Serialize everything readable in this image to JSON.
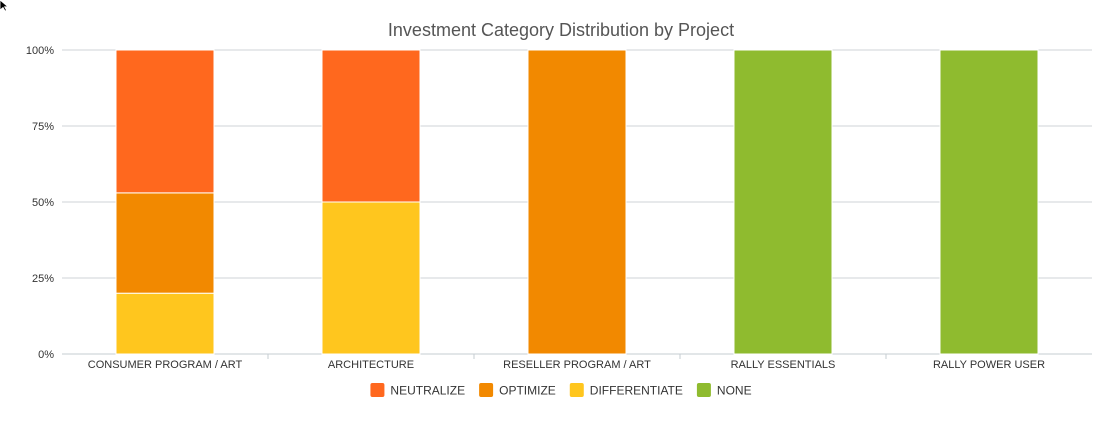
{
  "chart_data": {
    "type": "bar",
    "stacked": true,
    "title": "Investment Category Distribution by Project",
    "categories": [
      "CONSUMER PROGRAM / ART",
      "ARCHITECTURE",
      "RESELLER PROGRAM / ART",
      "RALLY ESSENTIALS",
      "RALLY POWER USER"
    ],
    "series": [
      {
        "name": "NEUTRALIZE",
        "color": "#ff681e",
        "values": [
          47,
          50,
          0,
          0,
          0
        ]
      },
      {
        "name": "OPTIMIZE",
        "color": "#f28900",
        "values": [
          33,
          0,
          100,
          0,
          0
        ]
      },
      {
        "name": "DIFFERENTIATE",
        "color": "#ffc61e",
        "values": [
          20,
          50,
          0,
          0,
          0
        ]
      },
      {
        "name": "NONE",
        "color": "#8fbb2f",
        "values": [
          0,
          0,
          0,
          100,
          100
        ]
      }
    ],
    "stack_order_bottom_to_top": [
      "NONE",
      "DIFFERENTIATE",
      "OPTIMIZE",
      "NEUTRALIZE"
    ],
    "ylim": [
      0,
      100
    ],
    "yticks": [
      "0%",
      "25%",
      "50%",
      "75%",
      "100%"
    ],
    "ytick_values": [
      0,
      25,
      50,
      75,
      100
    ],
    "grid": true,
    "legend_position": "bottom-center"
  }
}
